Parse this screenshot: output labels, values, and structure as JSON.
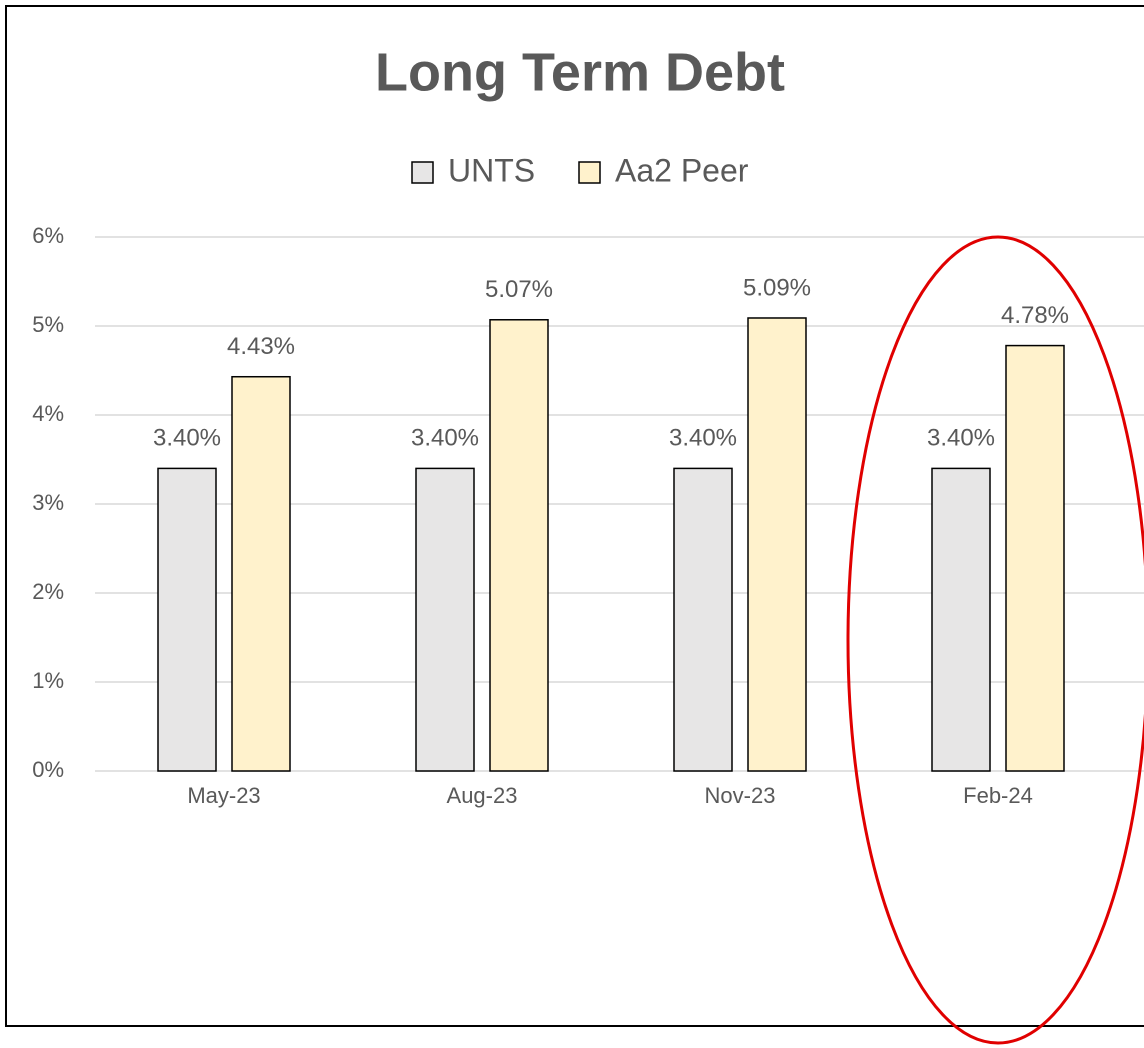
{
  "chart_data": {
    "type": "bar",
    "title": "Long Term Debt",
    "categories": [
      "May-23",
      "Aug-23",
      "Nov-23",
      "Feb-24"
    ],
    "series": [
      {
        "name": "UNTS",
        "color": "#e7e6e6",
        "values": [
          3.4,
          3.4,
          3.4,
          3.4
        ],
        "value_labels": [
          "3.40%",
          "3.40%",
          "3.40%",
          "3.40%"
        ]
      },
      {
        "name": "Aa2 Peer",
        "color": "#fff2cc",
        "values": [
          4.43,
          5.07,
          5.09,
          4.78
        ],
        "value_labels": [
          "4.43%",
          "5.07%",
          "5.09%",
          "4.78%"
        ]
      }
    ],
    "ylim": [
      0,
      6
    ],
    "yticks": [
      {
        "value": 0,
        "label": "0%"
      },
      {
        "value": 1,
        "label": "1%"
      },
      {
        "value": 2,
        "label": "2%"
      },
      {
        "value": 3,
        "label": "3%"
      },
      {
        "value": 4,
        "label": "4%"
      },
      {
        "value": 5,
        "label": "5%"
      },
      {
        "value": 6,
        "label": "6%"
      }
    ],
    "grid": true,
    "legend": "top"
  }
}
